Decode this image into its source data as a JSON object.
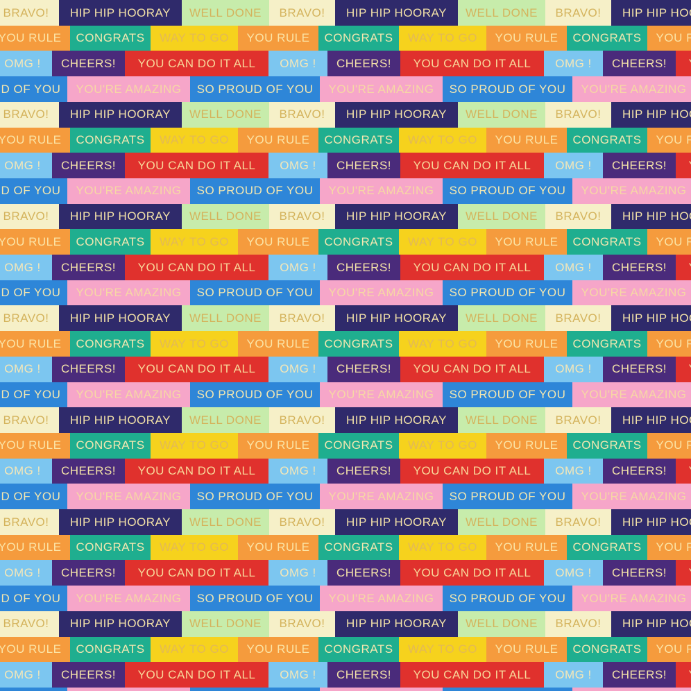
{
  "rows": [
    {
      "offset": -10,
      "tiles": [
        {
          "text": "BRAVO!",
          "bg": "#f6f0c8",
          "fg": "#d4b35c"
        },
        {
          "text": "HIP HIP HOORAY",
          "bg": "#2f2a6b",
          "fg": "#f3e2a8"
        },
        {
          "text": "WELL DONE",
          "bg": "#c7ecab",
          "fg": "#d4b35c"
        },
        {
          "text": "BRAVO!",
          "bg": "#f6f0c8",
          "fg": "#d4b35c"
        },
        {
          "text": "HIP HIP HOORAY",
          "bg": "#2f2a6b",
          "fg": "#f3e2a8"
        },
        {
          "text": "WELL DONE",
          "bg": "#c7ecab",
          "fg": "#d4b35c"
        },
        {
          "text": "BRAVO!",
          "bg": "#f6f0c8",
          "fg": "#d4b35c"
        },
        {
          "text": "HIP HIP HOORAY",
          "bg": "#2f2a6b",
          "fg": "#f3e2a8"
        }
      ]
    },
    {
      "offset": -15,
      "tiles": [
        {
          "text": "YOU RULE",
          "bg": "#f59b3d",
          "fg": "#fbe4a6"
        },
        {
          "text": "CONGRATS",
          "bg": "#1fae8f",
          "fg": "#f3e7b0"
        },
        {
          "text": "WAY TO GO",
          "bg": "#f6d21d",
          "fg": "#e3b955"
        },
        {
          "text": "YOU RULE",
          "bg": "#f59b3d",
          "fg": "#fbe4a6"
        },
        {
          "text": "CONGRATS",
          "bg": "#1fae8f",
          "fg": "#f3e7b0"
        },
        {
          "text": "WAY TO GO",
          "bg": "#f6d21d",
          "fg": "#e3b955"
        },
        {
          "text": "YOU RULE",
          "bg": "#f59b3d",
          "fg": "#fbe4a6"
        },
        {
          "text": "CONGRATS",
          "bg": "#1fae8f",
          "fg": "#f3e7b0"
        }
      ]
    },
    {
      "offset": -10,
      "tiles": [
        {
          "text": "OMG !",
          "bg": "#7cc6f0",
          "fg": "#f4e7b8"
        },
        {
          "text": "CHEERS!",
          "bg": "#4a2b7b",
          "fg": "#f3e2a8"
        },
        {
          "text": "YOU CAN DO IT ALL",
          "bg": "#e0312d",
          "fg": "#f8d89a"
        },
        {
          "text": "OMG !",
          "bg": "#7cc6f0",
          "fg": "#f4e7b8"
        },
        {
          "text": "CHEERS!",
          "bg": "#4a2b7b",
          "fg": "#f3e2a8"
        },
        {
          "text": "YOU CAN DO IT ALL",
          "bg": "#e0312d",
          "fg": "#f8d89a"
        },
        {
          "text": "OMG !",
          "bg": "#7cc6f0",
          "fg": "#f4e7b8"
        },
        {
          "text": "CHEERS!",
          "bg": "#4a2b7b",
          "fg": "#f3e2a8"
        },
        {
          "text": "YOU CAN DO IT ALL",
          "bg": "#e0312d",
          "fg": "#f8d89a"
        }
      ]
    },
    {
      "offset": -90,
      "tiles": [
        {
          "text": "SO PROUD OF YOU",
          "bg": "#2e86d8",
          "fg": "#f3e7b0"
        },
        {
          "text": "YOU'RE AMAZING",
          "bg": "#f6a6c9",
          "fg": "#f6d8a4"
        },
        {
          "text": "SO PROUD OF YOU",
          "bg": "#2e86d8",
          "fg": "#f3e7b0"
        },
        {
          "text": "YOU'RE AMAZING",
          "bg": "#f6a6c9",
          "fg": "#f6d8a4"
        },
        {
          "text": "SO PROUD OF YOU",
          "bg": "#2e86d8",
          "fg": "#f3e7b0"
        },
        {
          "text": "YOU'RE AMAZING",
          "bg": "#f6a6c9",
          "fg": "#f6d8a4"
        }
      ]
    }
  ]
}
